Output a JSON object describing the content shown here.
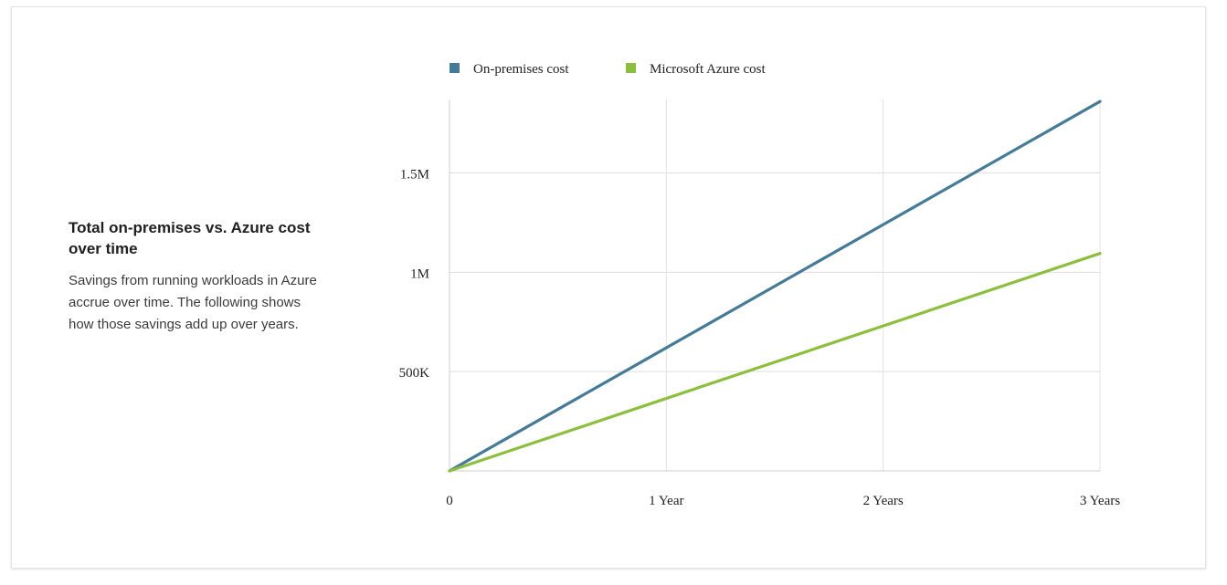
{
  "panel": {
    "title": "Total on-premises vs. Azure cost over time",
    "description": "Savings from running workloads in Azure accrue over time. The following shows how those savings add up over years."
  },
  "chart_data": {
    "type": "line",
    "title": "",
    "xlabel": "",
    "ylabel": "",
    "categories": [
      "0",
      "1 Year",
      "2 Years",
      "3 Years"
    ],
    "x": [
      0,
      1,
      2,
      3
    ],
    "ylim": [
      0,
      1870000
    ],
    "yticks": [
      {
        "value": 500000,
        "label": "500K"
      },
      {
        "value": 1000000,
        "label": "1M"
      },
      {
        "value": 1500000,
        "label": "1.5M"
      }
    ],
    "grid": true,
    "legend_position": "top",
    "series": [
      {
        "name": "On-premises cost",
        "color": "#457b96",
        "values": [
          0,
          620000,
          1240000,
          1860000
        ]
      },
      {
        "name": "Microsoft Azure cost",
        "color": "#8cbf3f",
        "values": [
          0,
          365000,
          730000,
          1095000
        ]
      }
    ]
  }
}
